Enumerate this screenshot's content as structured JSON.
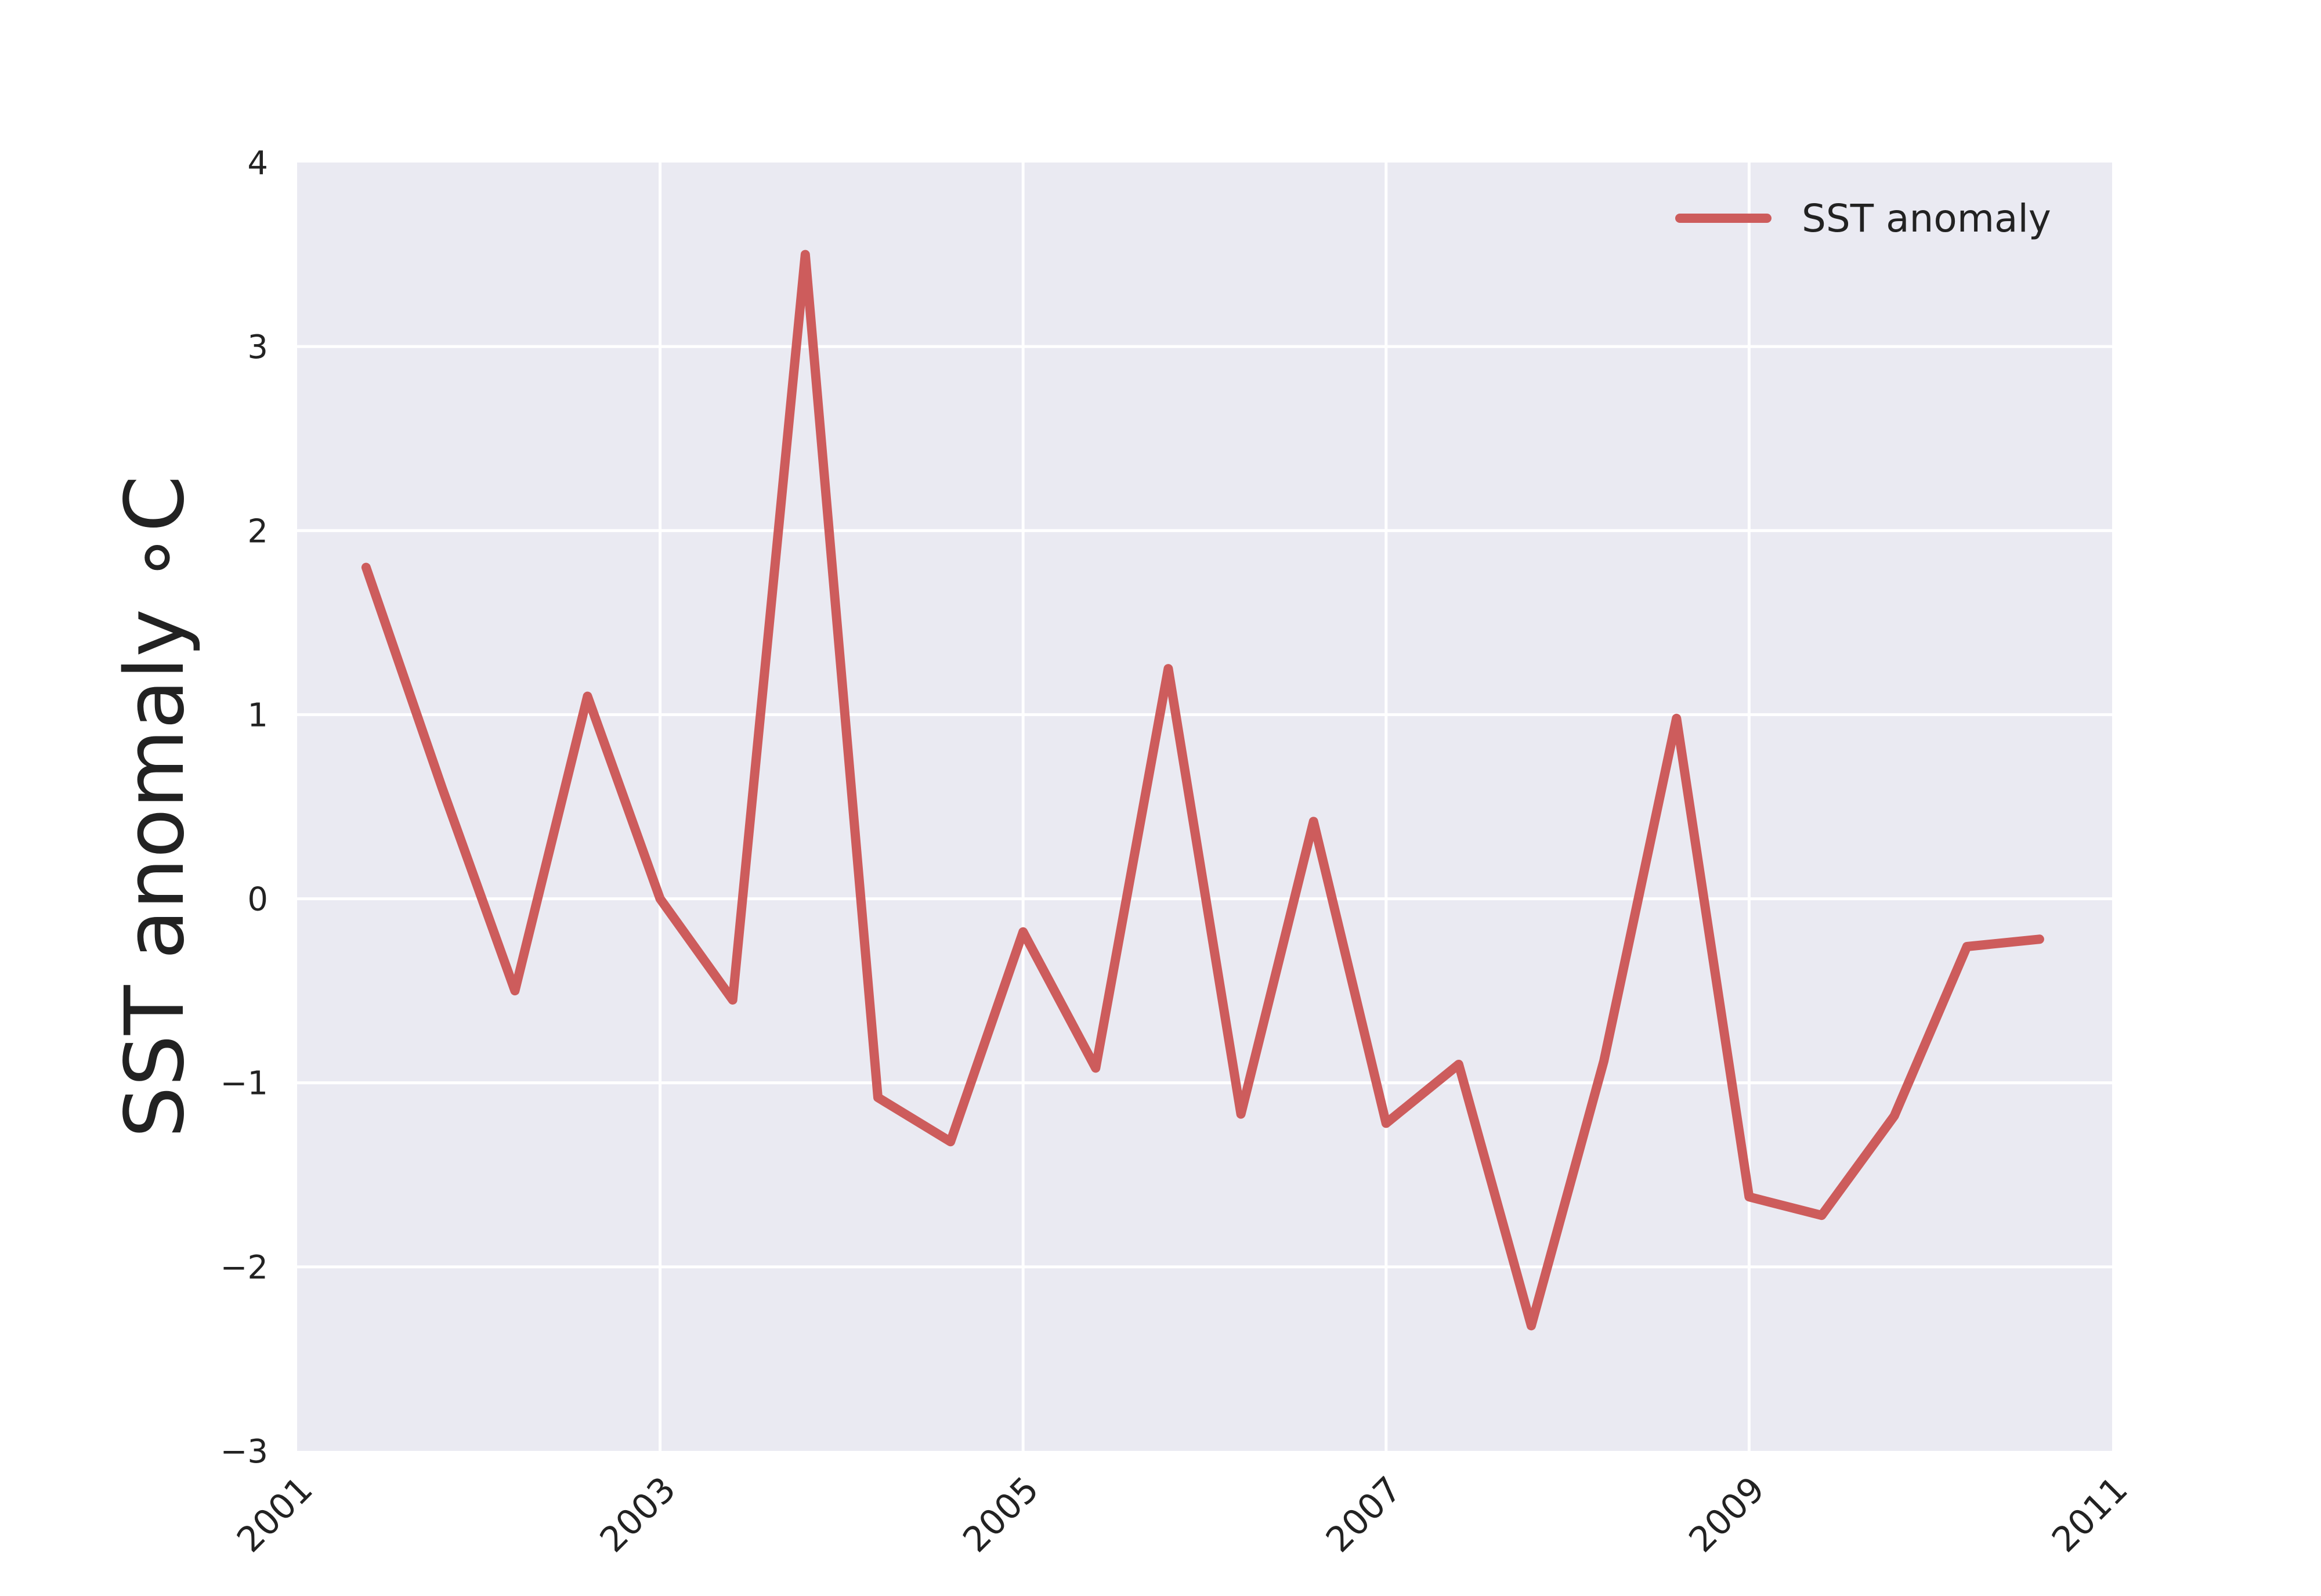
{
  "chart_data": {
    "type": "line",
    "title": "",
    "xlabel": "",
    "ylabel": "SST anomaly ∘C",
    "xlim": [
      2001,
      2011
    ],
    "ylim": [
      -3,
      4
    ],
    "grid": true,
    "legend_position": "top-right",
    "x_ticks": [
      "2001",
      "2003",
      "2005",
      "2007",
      "2009",
      "2011"
    ],
    "y_ticks": [
      "4",
      "3",
      "2",
      "1",
      "0",
      "−1",
      "−2",
      "−3"
    ],
    "series": [
      {
        "name": "SST anomaly",
        "color": "#cd5c5c",
        "x": [
          2001.38,
          2001.8,
          2002.2,
          2002.6,
          2003.0,
          2003.4,
          2003.8,
          2004.2,
          2004.6,
          2005.0,
          2005.4,
          2005.8,
          2006.2,
          2006.6,
          2007.0,
          2007.4,
          2007.8,
          2008.2,
          2008.6,
          2009.0,
          2009.4,
          2009.8,
          2010.2,
          2010.6
        ],
        "y": [
          1.8,
          0.6,
          -0.5,
          1.1,
          0.0,
          -0.55,
          3.5,
          -1.08,
          -1.32,
          -0.18,
          -0.92,
          1.25,
          -1.17,
          0.42,
          -1.22,
          -0.9,
          -2.32,
          -0.88,
          0.98,
          -1.62,
          -1.72,
          -1.18,
          -0.26,
          -0.22
        ]
      }
    ],
    "colors": {
      "background": "#eaeaf2",
      "grid": "#ffffff",
      "line": "#cd5c5c"
    }
  }
}
